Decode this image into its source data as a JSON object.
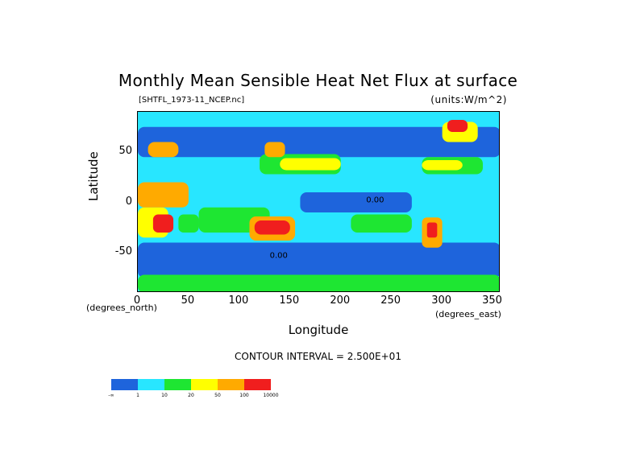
{
  "title": "Monthly Mean Sensible Heat Net Flux at surface",
  "file_label": "[SHTFL_1973-11_NCEP.nc]",
  "units_label": "(units:W/m^2)",
  "y_axis_label": "Latitude",
  "x_axis_label": "Longitude",
  "y_unit_label": "(degrees_north)",
  "x_unit_label": "(degrees_east)",
  "contour_interval_label": "CONTOUR INTERVAL = 2.500E+01",
  "contour_value_labels": [
    "0.00",
    "0.00"
  ],
  "colors": {
    "level_1": "#1e64dc",
    "level_2": "#28e6ff",
    "level_3": "#1ee632",
    "level_4": "#ffff00",
    "level_5": "#ffaa00",
    "level_6": "#f01e1e",
    "missing": "#a0a0a0"
  },
  "legend": {
    "colors": [
      "#1e64dc",
      "#28e6ff",
      "#1ee632",
      "#ffff00",
      "#ffaa00",
      "#f01e1e"
    ],
    "tick_labels": [
      "-∞",
      "1",
      "10",
      "20",
      "50",
      "100",
      "10000"
    ]
  },
  "chart_data": {
    "type": "heatmap",
    "title": "Monthly Mean Sensible Heat Net Flux at surface",
    "xlabel": "Longitude",
    "ylabel": "Latitude",
    "x_ticks": [
      0,
      50,
      100,
      150,
      200,
      250,
      300,
      350
    ],
    "y_ticks": [
      50,
      0,
      -50
    ],
    "xlim": [
      0,
      357.5
    ],
    "ylim": [
      -90,
      90
    ],
    "units": "W/m^2",
    "legend_position": "bottom-left",
    "regions": [
      {
        "level": 2,
        "lon": [
          0,
          357.5
        ],
        "lat": [
          -40,
          45
        ]
      },
      {
        "level": 1,
        "lon": [
          0,
          357.5
        ],
        "lat": [
          -75,
          -40
        ]
      },
      {
        "level": 1,
        "lon": [
          0,
          357.5
        ],
        "lat": [
          45,
          75
        ]
      },
      {
        "level": 1,
        "lon": [
          160,
          270
        ],
        "lat": [
          -10,
          10
        ]
      },
      {
        "level": 3,
        "lon": [
          0,
          357.5
        ],
        "lat": [
          -90,
          -72
        ]
      },
      {
        "level": 3,
        "lon": [
          60,
          130
        ],
        "lat": [
          -30,
          -5
        ]
      },
      {
        "level": 3,
        "lon": [
          210,
          270
        ],
        "lat": [
          -30,
          -12
        ]
      },
      {
        "level": 3,
        "lon": [
          120,
          200
        ],
        "lat": [
          28,
          48
        ]
      },
      {
        "level": 3,
        "lon": [
          280,
          340
        ],
        "lat": [
          28,
          45
        ]
      },
      {
        "level": 4,
        "lon": [
          140,
          200
        ],
        "lat": [
          32,
          44
        ]
      },
      {
        "level": 4,
        "lon": [
          280,
          320
        ],
        "lat": [
          32,
          42
        ]
      },
      {
        "level": 4,
        "lon": [
          0,
          30
        ],
        "lat": [
          -35,
          -5
        ]
      },
      {
        "level": 5,
        "lon": [
          110,
          155
        ],
        "lat": [
          -38,
          -14
        ]
      },
      {
        "level": 6,
        "lon": [
          115,
          150
        ],
        "lat": [
          -32,
          -18
        ]
      },
      {
        "level": 6,
        "lon": [
          15,
          35
        ],
        "lat": [
          -30,
          -12
        ]
      },
      {
        "level": 3,
        "lon": [
          40,
          60
        ],
        "lat": [
          -30,
          -12
        ]
      },
      {
        "level": 5,
        "lon": [
          0,
          50
        ],
        "lat": [
          -5,
          20
        ]
      },
      {
        "level": 5,
        "lon": [
          280,
          300
        ],
        "lat": [
          -45,
          -15
        ]
      },
      {
        "level": 6,
        "lon": [
          285,
          295
        ],
        "lat": [
          -35,
          -20
        ]
      },
      {
        "level": 5,
        "lon": [
          10,
          40
        ],
        "lat": [
          45,
          60
        ]
      },
      {
        "level": 4,
        "lon": [
          300,
          335
        ],
        "lat": [
          60,
          80
        ]
      },
      {
        "level": 6,
        "lon": [
          305,
          325
        ],
        "lat": [
          70,
          82
        ]
      },
      {
        "level": 5,
        "lon": [
          125,
          145
        ],
        "lat": [
          45,
          60
        ]
      },
      {
        "level": 1,
        "lon": [
          180,
          220
        ],
        "lat": [
          48,
          60
        ]
      }
    ]
  }
}
